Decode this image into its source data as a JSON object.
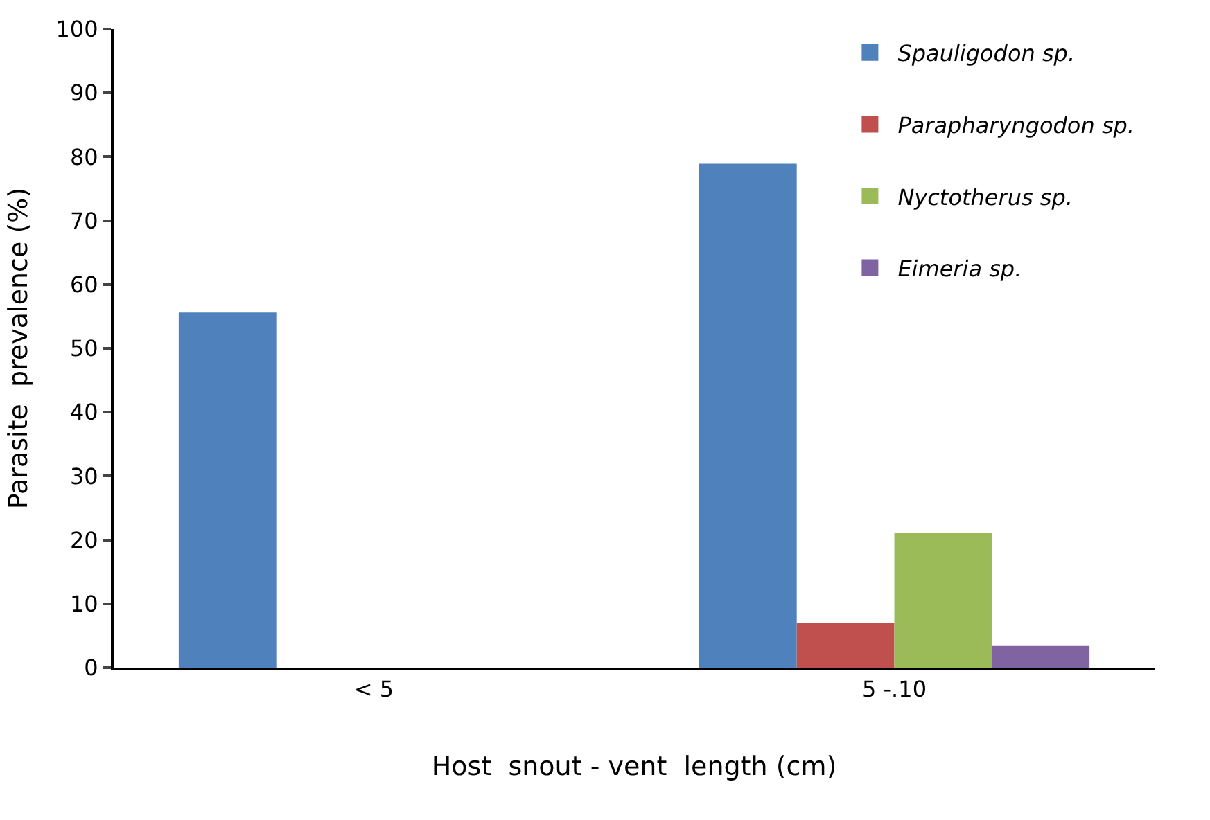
{
  "chart_data": {
    "type": "bar",
    "xlabel": "Host  snout - vent  length (cm)",
    "ylabel": "Parasite  prevalence (%)",
    "categories": [
      "< 5",
      "5 -.10"
    ],
    "series": [
      {
        "name": "Spauligodon sp.",
        "color": "#4f81bd",
        "values": [
          55.6,
          78.9
        ]
      },
      {
        "name": "Parapharyngodon sp.",
        "color": "#c0504d",
        "values": [
          0,
          7.0
        ]
      },
      {
        "name": "Nyctotherus sp.",
        "color": "#9bbb59",
        "values": [
          0,
          21.1
        ]
      },
      {
        "name": "Eimeria sp.",
        "color": "#8064a2",
        "values": [
          0,
          3.4
        ]
      }
    ],
    "ylim": [
      0,
      100
    ],
    "yticks": [
      0,
      10,
      20,
      30,
      40,
      50,
      60,
      70,
      80,
      90,
      100
    ],
    "legend": "top right"
  }
}
